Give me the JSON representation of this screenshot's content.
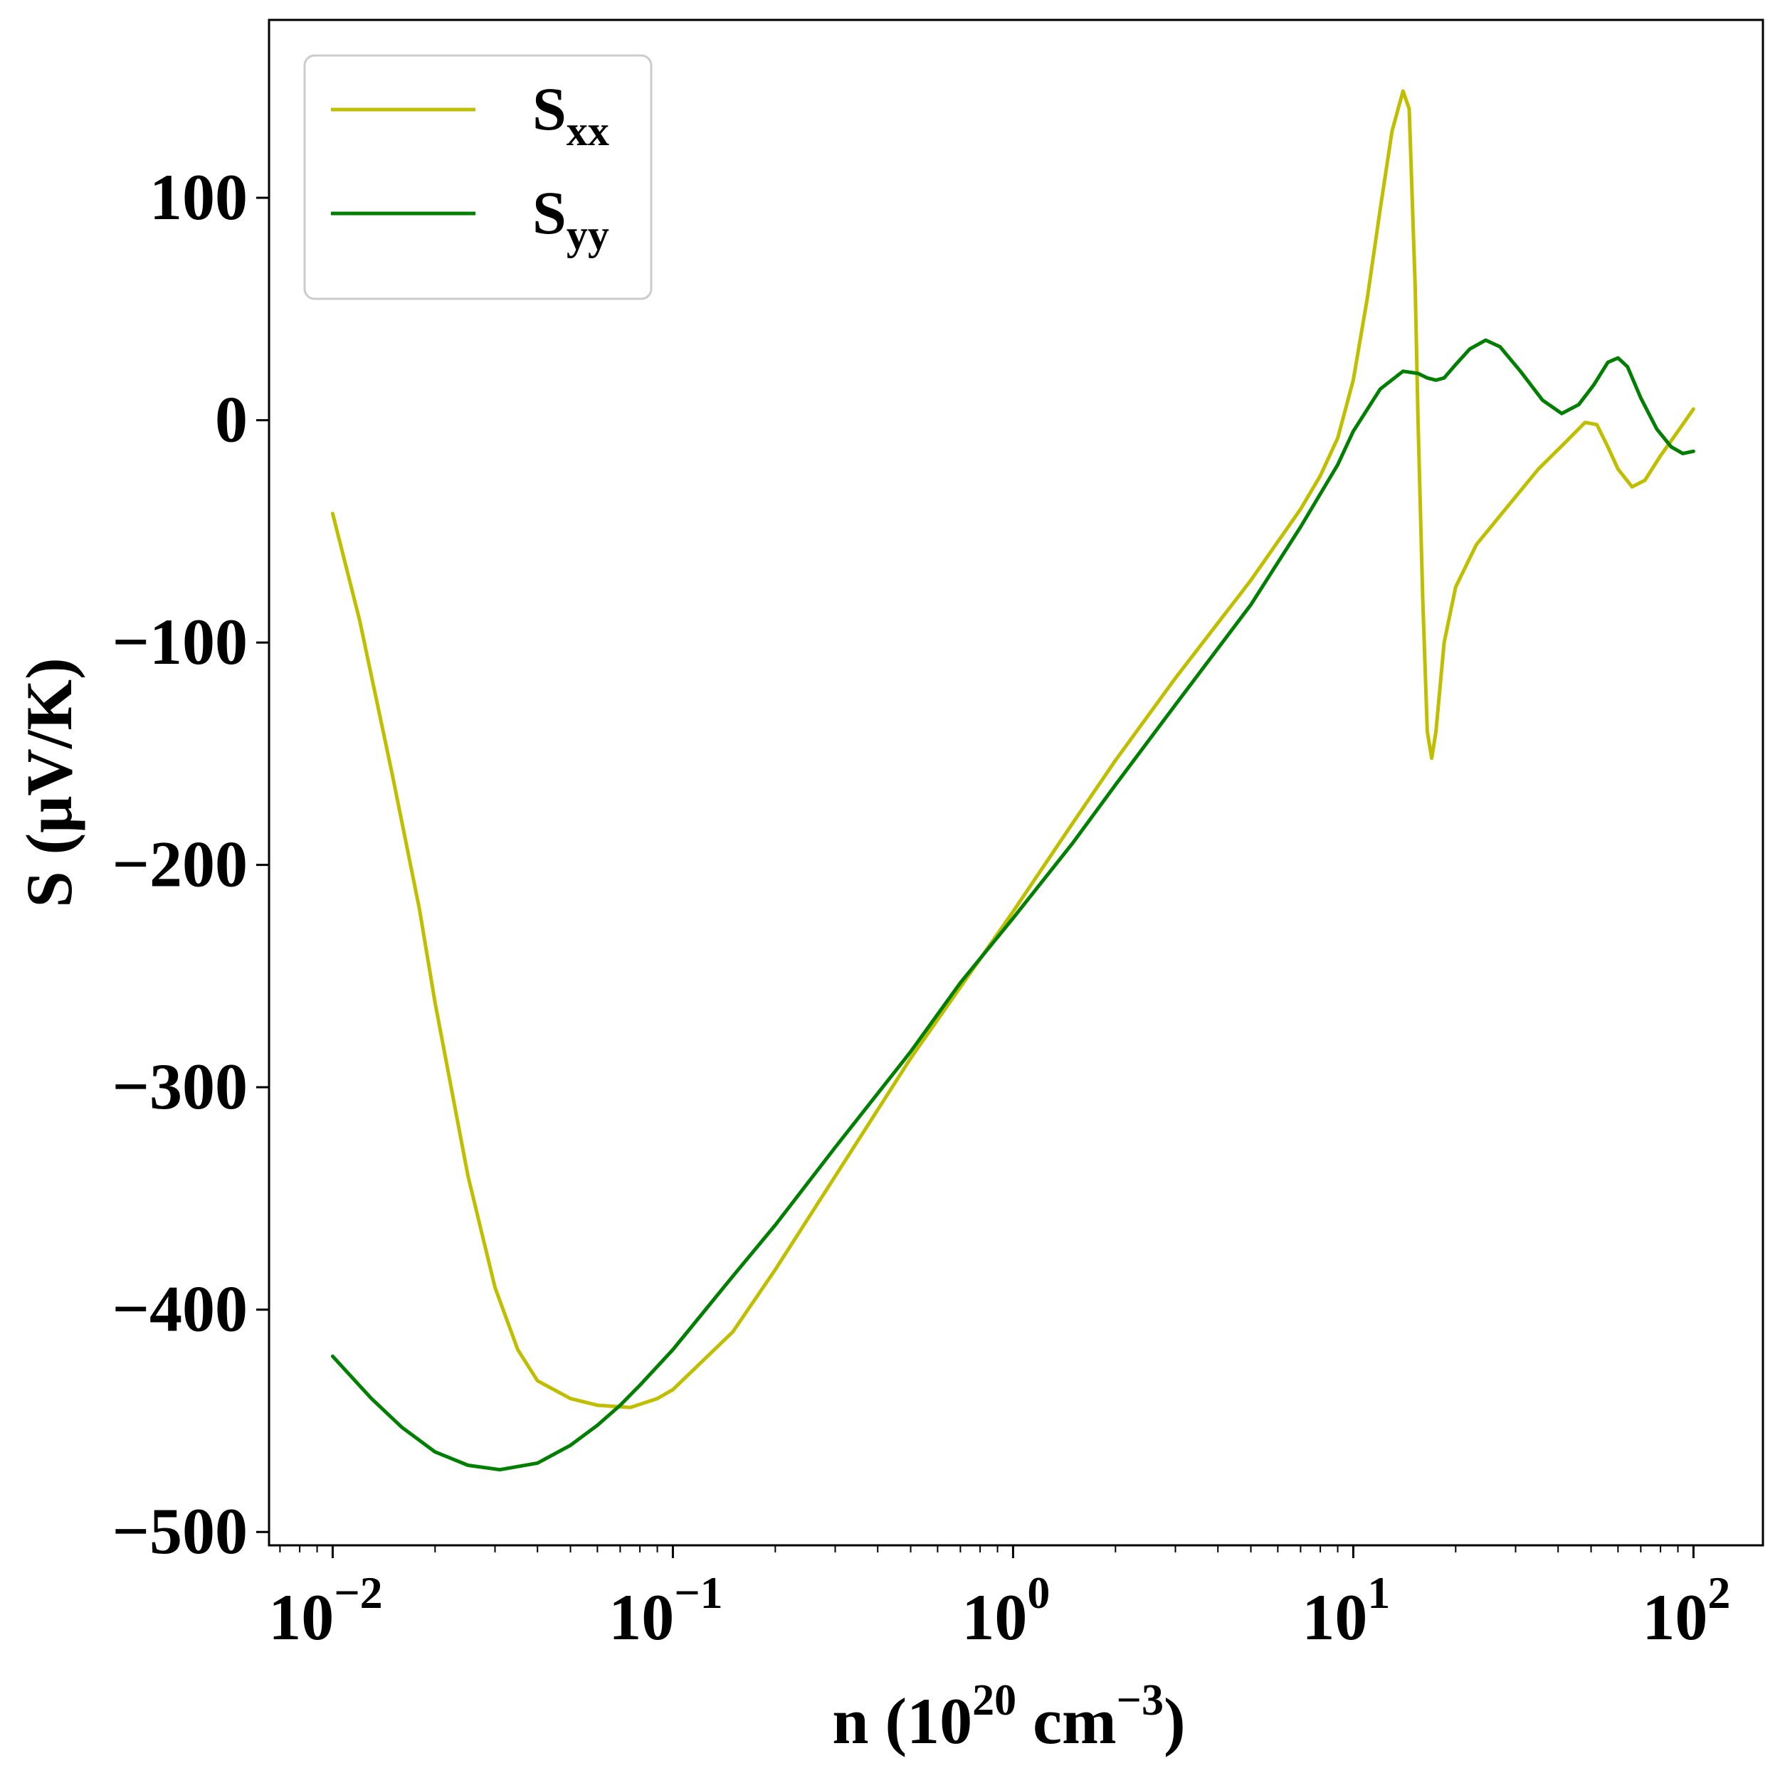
{
  "chart_data": {
    "type": "line",
    "xscale": "log",
    "xlim": [
      0.0065,
      160
    ],
    "ylim": [
      -506,
      180
    ],
    "grid": false,
    "legend_placement": "top-left",
    "title": "",
    "xlabel": {
      "prefix": "n (10",
      "sup1": "20",
      "mid": " cm",
      "sup2": "−3",
      "suffix": ")"
    },
    "ylabel": "S (μV/K)",
    "yticks": [
      {
        "value": 100,
        "label": "100"
      },
      {
        "value": 0,
        "label": "0"
      },
      {
        "value": -100,
        "label": "−100"
      },
      {
        "value": -200,
        "label": "−200"
      },
      {
        "value": -300,
        "label": "−300"
      },
      {
        "value": -400,
        "label": "−400"
      },
      {
        "value": -500,
        "label": "−500"
      }
    ],
    "xticks": [
      {
        "value": 0.01,
        "base": "10",
        "exp": "−2"
      },
      {
        "value": 0.1,
        "base": "10",
        "exp": "−1"
      },
      {
        "value": 1,
        "base": "10",
        "exp": "0"
      },
      {
        "value": 10,
        "base": "10",
        "exp": "1"
      },
      {
        "value": 100,
        "base": "10",
        "exp": "2"
      }
    ],
    "series": [
      {
        "name": "S",
        "subscript": "xx",
        "color": "#bfbf00",
        "points": [
          [
            0.01,
            -42
          ],
          [
            0.012,
            -90
          ],
          [
            0.015,
            -160
          ],
          [
            0.018,
            -220
          ],
          [
            0.02,
            -262
          ],
          [
            0.025,
            -340
          ],
          [
            0.03,
            -390
          ],
          [
            0.035,
            -418
          ],
          [
            0.04,
            -432
          ],
          [
            0.05,
            -440
          ],
          [
            0.06,
            -443
          ],
          [
            0.075,
            -444
          ],
          [
            0.09,
            -440
          ],
          [
            0.1,
            -436
          ],
          [
            0.15,
            -410
          ],
          [
            0.2,
            -382
          ],
          [
            0.3,
            -340
          ],
          [
            0.5,
            -287
          ],
          [
            0.7,
            -255
          ],
          [
            1.0,
            -221
          ],
          [
            1.5,
            -181
          ],
          [
            2.0,
            -153
          ],
          [
            3.0,
            -116
          ],
          [
            5.0,
            -72
          ],
          [
            7.0,
            -40
          ],
          [
            8.0,
            -25
          ],
          [
            9.0,
            -8
          ],
          [
            10.0,
            18
          ],
          [
            11.0,
            55
          ],
          [
            12.0,
            95
          ],
          [
            13.0,
            130
          ],
          [
            14.0,
            148
          ],
          [
            14.6,
            140
          ],
          [
            15.2,
            60
          ],
          [
            15.5,
            0
          ],
          [
            16.0,
            -80
          ],
          [
            16.5,
            -140
          ],
          [
            17.0,
            -152
          ],
          [
            17.5,
            -140
          ],
          [
            18.5,
            -100
          ],
          [
            20.0,
            -75
          ],
          [
            23.0,
            -56
          ],
          [
            28.0,
            -40
          ],
          [
            35.0,
            -22
          ],
          [
            42.0,
            -10
          ],
          [
            48.0,
            -1
          ],
          [
            52.0,
            -2
          ],
          [
            56.0,
            -12
          ],
          [
            60.0,
            -22
          ],
          [
            66.0,
            -30
          ],
          [
            72.0,
            -27
          ],
          [
            80.0,
            -16
          ],
          [
            90.0,
            -5
          ],
          [
            100.0,
            5
          ]
        ]
      },
      {
        "name": "S",
        "subscript": "yy",
        "color": "#007f00",
        "points": [
          [
            0.01,
            -421
          ],
          [
            0.013,
            -440
          ],
          [
            0.016,
            -453
          ],
          [
            0.02,
            -464
          ],
          [
            0.025,
            -470
          ],
          [
            0.031,
            -472
          ],
          [
            0.04,
            -469
          ],
          [
            0.05,
            -461
          ],
          [
            0.06,
            -452
          ],
          [
            0.07,
            -443
          ],
          [
            0.08,
            -434
          ],
          [
            0.1,
            -418
          ],
          [
            0.15,
            -385
          ],
          [
            0.2,
            -362
          ],
          [
            0.3,
            -327
          ],
          [
            0.5,
            -284
          ],
          [
            0.7,
            -253
          ],
          [
            1.0,
            -224
          ],
          [
            1.5,
            -190
          ],
          [
            2.0,
            -164
          ],
          [
            3.0,
            -128
          ],
          [
            5.0,
            -83
          ],
          [
            7.0,
            -48
          ],
          [
            9.0,
            -20
          ],
          [
            10.0,
            -5
          ],
          [
            12.0,
            14
          ],
          [
            14.0,
            22
          ],
          [
            15.5,
            21
          ],
          [
            16.5,
            19
          ],
          [
            17.5,
            18
          ],
          [
            18.5,
            19
          ],
          [
            20.0,
            25
          ],
          [
            22.0,
            32
          ],
          [
            24.5,
            36
          ],
          [
            27.0,
            33
          ],
          [
            31.0,
            22
          ],
          [
            36.0,
            9
          ],
          [
            41.0,
            3
          ],
          [
            46.0,
            7
          ],
          [
            51.0,
            16
          ],
          [
            56.0,
            26
          ],
          [
            60.0,
            28
          ],
          [
            64.0,
            24
          ],
          [
            70.0,
            10
          ],
          [
            78.0,
            -4
          ],
          [
            86.0,
            -12
          ],
          [
            93.0,
            -15
          ],
          [
            100.0,
            -14
          ]
        ]
      }
    ]
  }
}
